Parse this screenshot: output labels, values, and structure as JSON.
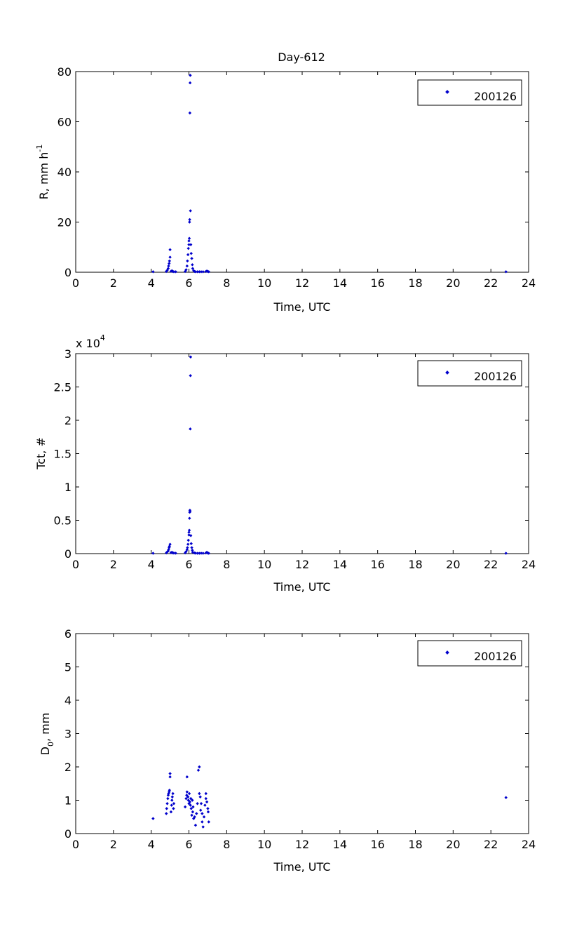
{
  "figure": {
    "title": "Day-612",
    "marker_color": "#0000cc"
  },
  "chart_data": [
    {
      "type": "scatter",
      "title": "Day-612",
      "xlabel": "Time, UTC",
      "ylabel_main": "R, mm h",
      "ylabel_sup": "-1",
      "xlim": [
        0,
        24
      ],
      "ylim": [
        0,
        80
      ],
      "x_ticks": [
        0,
        2,
        4,
        6,
        8,
        10,
        12,
        14,
        16,
        18,
        20,
        22,
        24
      ],
      "y_ticks": [
        0,
        20,
        40,
        60,
        80
      ],
      "y_tick_labels": [
        "0",
        "20",
        "40",
        "60",
        "80"
      ],
      "legend": {
        "placement": "top-right",
        "entries": [
          "200126"
        ]
      },
      "series": [
        {
          "name": "200126",
          "color": "#0000cc",
          "points": [
            [
              4.1,
              0.2
            ],
            [
              4.8,
              0.3
            ],
            [
              4.85,
              0.8
            ],
            [
              4.9,
              1.5
            ],
            [
              4.92,
              2.5
            ],
            [
              4.95,
              3.5
            ],
            [
              4.97,
              4.5
            ],
            [
              5.0,
              6.0
            ],
            [
              5.0,
              9.0
            ],
            [
              5.05,
              0.4
            ],
            [
              5.1,
              0.6
            ],
            [
              5.15,
              0.3
            ],
            [
              5.2,
              0.2
            ],
            [
              5.3,
              0.2
            ],
            [
              5.8,
              0.3
            ],
            [
              5.85,
              1.0
            ],
            [
              5.9,
              2.5
            ],
            [
              5.92,
              4.5
            ],
            [
              5.95,
              7.0
            ],
            [
              5.97,
              9.5
            ],
            [
              6.0,
              11.0
            ],
            [
              6.0,
              12.5
            ],
            [
              6.02,
              13.5
            ],
            [
              6.03,
              20.0
            ],
            [
              6.04,
              21.0
            ],
            [
              6.05,
              63.5
            ],
            [
              6.06,
              75.5
            ],
            [
              6.07,
              78.5
            ],
            [
              6.08,
              24.5
            ],
            [
              6.1,
              11.0
            ],
            [
              6.12,
              7.5
            ],
            [
              6.15,
              5.5
            ],
            [
              6.18,
              3.0
            ],
            [
              6.2,
              1.5
            ],
            [
              6.25,
              0.6
            ],
            [
              6.3,
              0.3
            ],
            [
              6.35,
              0.2
            ],
            [
              6.45,
              0.2
            ],
            [
              6.55,
              0.2
            ],
            [
              6.65,
              0.2
            ],
            [
              6.75,
              0.2
            ],
            [
              6.9,
              0.3
            ],
            [
              6.95,
              0.5
            ],
            [
              7.0,
              0.3
            ],
            [
              7.05,
              0.2
            ],
            [
              22.8,
              0.2
            ]
          ]
        }
      ]
    },
    {
      "type": "scatter",
      "xlabel": "Time, UTC",
      "ylabel": "Tct, #",
      "scale_label_main": "x 10",
      "scale_label_exp": "4",
      "xlim": [
        0,
        24
      ],
      "ylim": [
        0,
        30000
      ],
      "x_ticks": [
        0,
        2,
        4,
        6,
        8,
        10,
        12,
        14,
        16,
        18,
        20,
        22,
        24
      ],
      "y_ticks": [
        0,
        5000,
        10000,
        15000,
        20000,
        25000,
        30000
      ],
      "y_tick_labels": [
        "0",
        "0.5",
        "1",
        "1.5",
        "2",
        "2.5",
        "3"
      ],
      "legend": {
        "placement": "top-right",
        "entries": [
          "200126"
        ]
      },
      "series": [
        {
          "name": "200126",
          "color": "#0000cc",
          "points": [
            [
              4.1,
              50
            ],
            [
              4.8,
              100
            ],
            [
              4.85,
              250
            ],
            [
              4.9,
              400
            ],
            [
              4.92,
              600
            ],
            [
              4.95,
              900
            ],
            [
              4.97,
              1100
            ],
            [
              5.0,
              1400
            ],
            [
              5.05,
              150
            ],
            [
              5.1,
              200
            ],
            [
              5.15,
              100
            ],
            [
              5.2,
              80
            ],
            [
              5.3,
              60
            ],
            [
              5.8,
              100
            ],
            [
              5.85,
              300
            ],
            [
              5.9,
              600
            ],
            [
              5.92,
              900
            ],
            [
              5.95,
              1400
            ],
            [
              5.97,
              2000
            ],
            [
              6.0,
              2800
            ],
            [
              6.0,
              3200
            ],
            [
              6.02,
              3500
            ],
            [
              6.03,
              5300
            ],
            [
              6.04,
              6200
            ],
            [
              6.05,
              6500
            ],
            [
              6.06,
              6300
            ],
            [
              6.07,
              18700
            ],
            [
              6.08,
              26700
            ],
            [
              6.09,
              29500
            ],
            [
              6.1,
              2700
            ],
            [
              6.12,
              1500
            ],
            [
              6.15,
              900
            ],
            [
              6.18,
              500
            ],
            [
              6.2,
              200
            ],
            [
              6.3,
              100
            ],
            [
              6.35,
              60
            ],
            [
              6.45,
              50
            ],
            [
              6.55,
              50
            ],
            [
              6.65,
              60
            ],
            [
              6.75,
              50
            ],
            [
              6.9,
              100
            ],
            [
              6.95,
              200
            ],
            [
              7.0,
              80
            ],
            [
              7.05,
              50
            ],
            [
              22.8,
              50
            ]
          ]
        }
      ]
    },
    {
      "type": "scatter",
      "xlabel": "Time, UTC",
      "ylabel_main": "D",
      "ylabel_sub": "0",
      "ylabel_rest": ", mm",
      "xlim": [
        0,
        24
      ],
      "ylim": [
        0,
        6
      ],
      "x_ticks": [
        0,
        2,
        4,
        6,
        8,
        10,
        12,
        14,
        16,
        18,
        20,
        22,
        24
      ],
      "y_ticks": [
        0,
        1,
        2,
        3,
        4,
        5,
        6
      ],
      "y_tick_labels": [
        "0",
        "1",
        "2",
        "3",
        "4",
        "5",
        "6"
      ],
      "legend": {
        "placement": "top-right",
        "entries": [
          "200126"
        ]
      },
      "series": [
        {
          "name": "200126",
          "color": "#0000cc",
          "points": [
            [
              4.1,
              0.45
            ],
            [
              4.8,
              0.6
            ],
            [
              4.82,
              0.75
            ],
            [
              4.85,
              0.9
            ],
            [
              4.88,
              1.05
            ],
            [
              4.9,
              1.15
            ],
            [
              4.92,
              1.2
            ],
            [
              4.95,
              1.25
            ],
            [
              4.97,
              1.3
            ],
            [
              5.0,
              1.7
            ],
            [
              5.0,
              1.8
            ],
            [
              5.05,
              0.65
            ],
            [
              5.08,
              0.85
            ],
            [
              5.1,
              1.0
            ],
            [
              5.12,
              1.1
            ],
            [
              5.15,
              1.2
            ],
            [
              5.18,
              0.75
            ],
            [
              5.2,
              0.9
            ],
            [
              5.8,
              0.8
            ],
            [
              5.85,
              1.05
            ],
            [
              5.88,
              1.15
            ],
            [
              5.9,
              1.25
            ],
            [
              5.9,
              1.7
            ],
            [
              5.95,
              1.1
            ],
            [
              5.97,
              1.0
            ],
            [
              6.0,
              0.9
            ],
            [
              6.02,
              1.2
            ],
            [
              6.05,
              0.95
            ],
            [
              6.08,
              0.85
            ],
            [
              6.1,
              1.05
            ],
            [
              6.12,
              0.75
            ],
            [
              6.15,
              0.55
            ],
            [
              6.18,
              1.0
            ],
            [
              6.2,
              0.65
            ],
            [
              6.22,
              0.8
            ],
            [
              6.25,
              0.45
            ],
            [
              6.3,
              0.5
            ],
            [
              6.35,
              0.25
            ],
            [
              6.4,
              0.6
            ],
            [
              6.45,
              0.9
            ],
            [
              6.5,
              1.9
            ],
            [
              6.55,
              2.0
            ],
            [
              6.55,
              1.2
            ],
            [
              6.6,
              1.1
            ],
            [
              6.62,
              0.7
            ],
            [
              6.65,
              0.9
            ],
            [
              6.7,
              0.6
            ],
            [
              6.7,
              0.35
            ],
            [
              6.75,
              0.2
            ],
            [
              6.8,
              0.5
            ],
            [
              6.85,
              0.85
            ],
            [
              6.9,
              1.05
            ],
            [
              6.9,
              1.2
            ],
            [
              6.95,
              0.95
            ],
            [
              7.0,
              0.75
            ],
            [
              7.02,
              0.65
            ],
            [
              7.05,
              0.35
            ],
            [
              22.8,
              1.08
            ]
          ]
        }
      ]
    }
  ]
}
